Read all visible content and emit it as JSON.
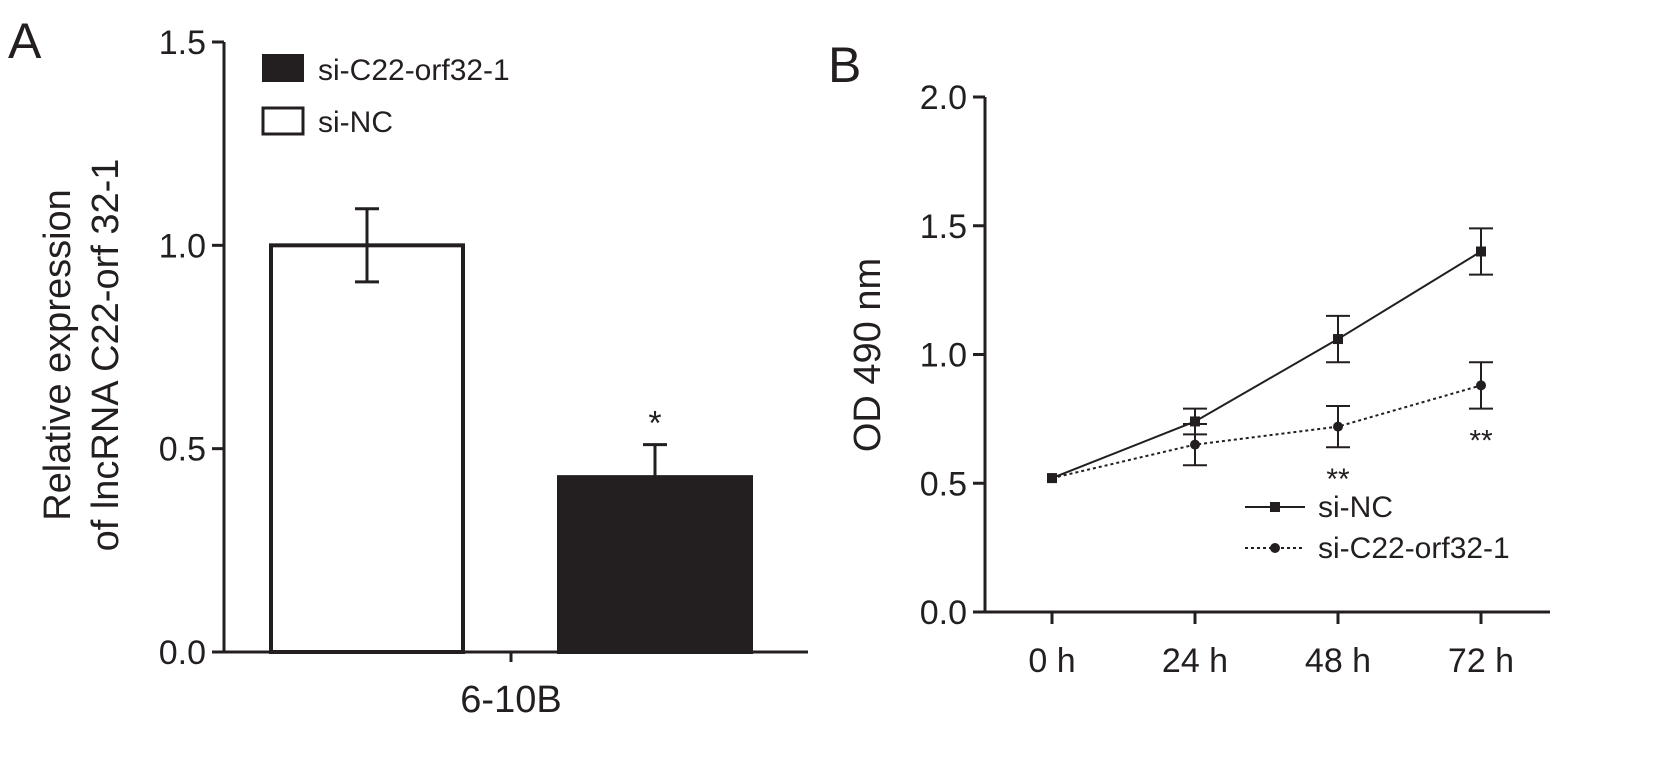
{
  "panels": {
    "a": {
      "letter": "A"
    },
    "b": {
      "letter": "B"
    }
  },
  "colors": {
    "ink": "#231f20",
    "fill_sinc": "#ffffff",
    "fill_si": "#231f20"
  },
  "chart_data": [
    {
      "type": "bar",
      "panel": "A",
      "ylabel_lines": [
        "Relative expression",
        "of lncRNA C22-orf 32-1"
      ],
      "xlabel": "",
      "categories": [
        "6-10B"
      ],
      "ylim": [
        0.0,
        1.5
      ],
      "yticks": [
        "0.0",
        "0.5",
        "1.0",
        "1.5"
      ],
      "series": [
        {
          "name": "si-NC",
          "values": [
            1.0
          ],
          "error": [
            0.09
          ],
          "fill": "#ffffff",
          "marker": ""
        },
        {
          "name": "si-C22-orf32-1",
          "values": [
            0.43
          ],
          "error": [
            0.08
          ],
          "fill": "#231f20",
          "marker": "*"
        }
      ],
      "legend": {
        "placement": "top-left",
        "entries": [
          "si-C22-orf32-1",
          "si-NC"
        ]
      }
    },
    {
      "type": "line",
      "panel": "B",
      "ylabel": "OD 490 nm",
      "xlabel": "",
      "x": [
        "0 h",
        "24 h",
        "48 h",
        "72 h"
      ],
      "ylim": [
        0.0,
        2.0
      ],
      "yticks": [
        "0.0",
        "0.5",
        "1.0",
        "1.5",
        "2.0"
      ],
      "series": [
        {
          "name": "si-NC",
          "values": [
            0.52,
            0.74,
            1.06,
            1.4
          ],
          "error": [
            0.0,
            0.05,
            0.09,
            0.09
          ],
          "marker": "square",
          "line": "solid",
          "annotations": [
            "",
            "",
            "",
            ""
          ]
        },
        {
          "name": "si-C22-orf32-1",
          "values": [
            0.52,
            0.65,
            0.72,
            0.88
          ],
          "error": [
            0.0,
            0.08,
            0.08,
            0.09
          ],
          "marker": "circle",
          "line": "dotted",
          "annotations": [
            "",
            "",
            "**",
            "**"
          ]
        }
      ],
      "legend": {
        "placement": "bottom-right",
        "entries": [
          "si-NC",
          "si-C22-orf32-1"
        ]
      }
    }
  ]
}
